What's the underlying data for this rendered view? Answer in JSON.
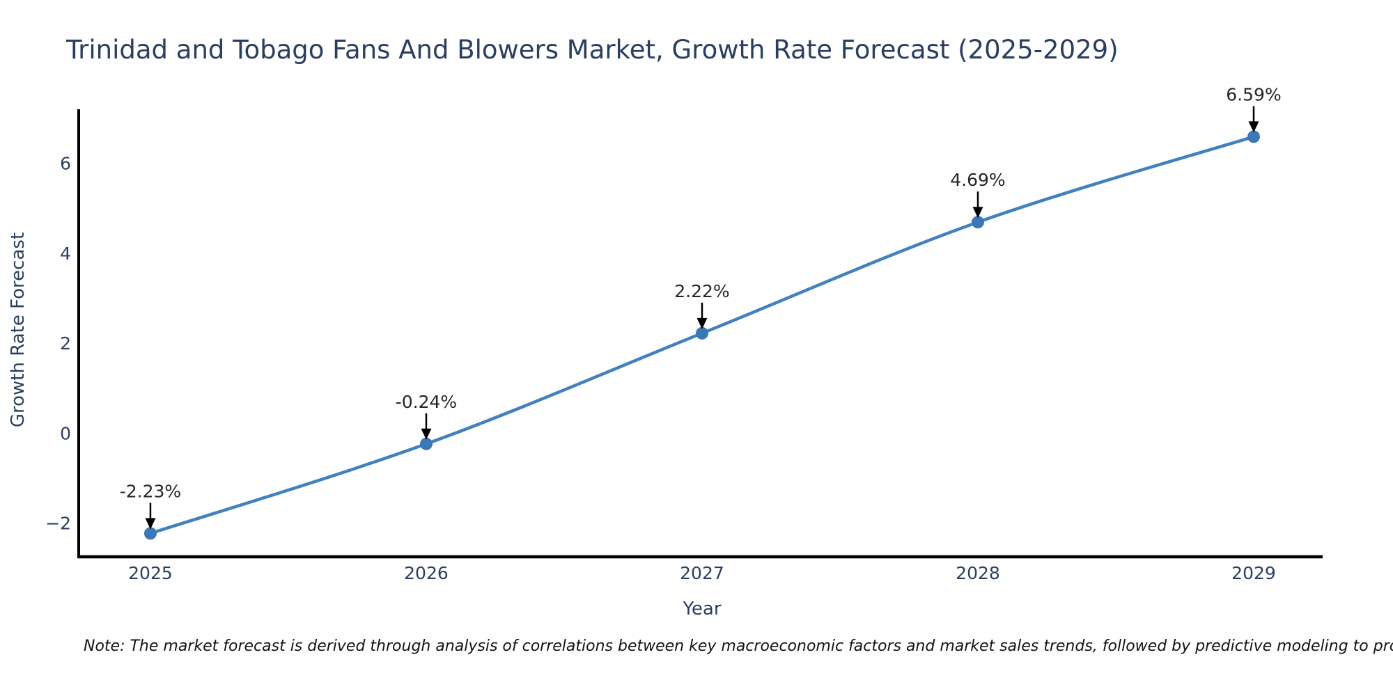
{
  "title": "Trinidad and Tobago Fans And Blowers Market, Growth Rate Forecast (2025-2029)",
  "note": "Note: The market forecast is derived through analysis of correlations between key macroeconomic factors and market sales trends, followed by predictive modeling to project future sales",
  "chart_data": {
    "type": "line",
    "title": "Trinidad and Tobago Fans And Blowers Market, Growth Rate Forecast (2025-2029)",
    "xlabel": "Year",
    "ylabel": "Growth Rate Forecast",
    "x": [
      2025,
      2026,
      2027,
      2028,
      2029
    ],
    "series": [
      {
        "name": "Growth Rate Forecast",
        "values": [
          -2.23,
          -0.24,
          2.22,
          4.69,
          6.59
        ]
      }
    ],
    "point_labels": [
      "-2.23%",
      "-0.24%",
      "2.22%",
      "4.69%",
      "6.59%"
    ],
    "x_tick_labels": [
      "2025",
      "2026",
      "2027",
      "2028",
      "2029"
    ],
    "y_ticks": [
      -2,
      0,
      2,
      4,
      6
    ],
    "y_tick_labels": [
      "−2",
      "0",
      "2",
      "4",
      "6"
    ],
    "xlim": [
      2024.74,
      2029.25
    ],
    "ylim": [
      -2.75,
      7.2
    ],
    "grid": false,
    "legend": "none",
    "colors": {
      "line": "#4281bd",
      "marker": "#3a78b6",
      "axis": "#000000",
      "axis_text": "#2a3f5f",
      "annotation_text": "#262626",
      "arrow": "#000000",
      "background": "#ffffff"
    }
  }
}
